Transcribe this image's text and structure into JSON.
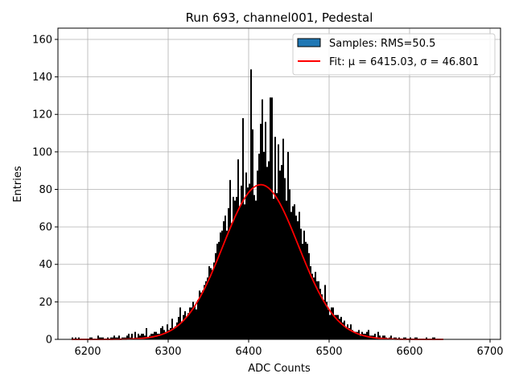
{
  "chart_data": {
    "type": "bar",
    "title": "Run 693, channel001, Pedestal",
    "xlabel": "ADC Counts",
    "ylabel": "Entries",
    "xlim": [
      6163,
      6713
    ],
    "ylim": [
      0,
      166
    ],
    "xticks": [
      6200,
      6300,
      6400,
      6500,
      6600,
      6700
    ],
    "yticks": [
      0,
      20,
      40,
      60,
      80,
      100,
      120,
      140,
      160
    ],
    "grid": true,
    "legend_position": "top-right",
    "histogram": {
      "name": "Samples: RMS=50.5",
      "color": "#000000",
      "legend_color": "#1f77b4",
      "bin_width": 2,
      "x_start": 6180,
      "values": [
        1,
        0,
        1,
        0,
        1,
        0,
        0,
        0,
        0,
        0,
        0,
        1,
        1,
        0,
        0,
        0,
        2,
        1,
        1,
        1,
        0,
        0,
        1,
        0,
        1,
        1,
        2,
        1,
        1,
        2,
        0,
        1,
        1,
        1,
        2,
        3,
        1,
        3,
        0,
        4,
        1,
        3,
        2,
        3,
        3,
        2,
        6,
        1,
        2,
        3,
        3,
        4,
        4,
        3,
        3,
        6,
        7,
        5,
        4,
        8,
        5,
        6,
        11,
        6,
        7,
        9,
        12,
        17,
        9,
        13,
        15,
        12,
        14,
        17,
        17,
        20,
        18,
        16,
        21,
        26,
        25,
        26,
        29,
        31,
        33,
        39,
        38,
        37,
        41,
        46,
        51,
        52,
        57,
        58,
        63,
        66,
        58,
        70,
        85,
        62,
        76,
        74,
        76,
        96,
        71,
        82,
        118,
        72,
        89,
        81,
        83,
        144,
        112,
        77,
        74,
        90,
        99,
        115,
        128,
        100,
        116,
        92,
        95,
        129,
        129,
        75,
        108,
        78,
        104,
        90,
        93,
        107,
        86,
        74,
        100,
        80,
        68,
        71,
        72,
        66,
        63,
        68,
        59,
        51,
        58,
        52,
        51,
        46,
        39,
        35,
        33,
        36,
        31,
        31,
        27,
        24,
        21,
        29,
        20,
        16,
        13,
        17,
        17,
        13,
        13,
        13,
        11,
        12,
        9,
        10,
        6,
        8,
        6,
        8,
        5,
        4,
        4,
        4,
        5,
        2,
        4,
        3,
        3,
        4,
        5,
        2,
        2,
        2,
        3,
        1,
        4,
        2,
        1,
        2,
        2,
        1,
        0,
        1,
        2,
        0,
        1,
        1,
        0,
        1,
        0,
        0,
        1,
        1,
        0,
        0,
        1,
        0,
        0,
        1,
        1,
        0,
        0,
        0,
        0,
        0,
        1,
        0,
        0,
        0,
        1,
        1,
        0
      ]
    },
    "fit": {
      "name": "Fit: μ = 6415.03, σ = 46.801",
      "color": "#ff0000",
      "mu": 6415.03,
      "sigma": 46.801,
      "amplitude": 82.5,
      "x_range": [
        6180,
        6642
      ]
    }
  }
}
